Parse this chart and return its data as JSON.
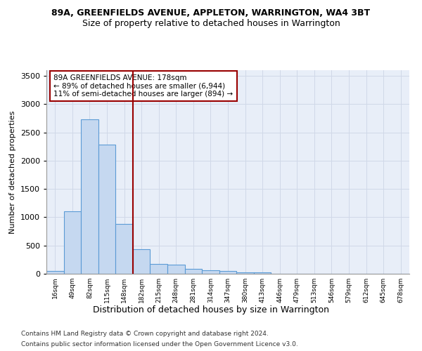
{
  "title": "89A, GREENFIELDS AVENUE, APPLETON, WARRINGTON, WA4 3BT",
  "subtitle": "Size of property relative to detached houses in Warrington",
  "xlabel": "Distribution of detached houses by size in Warrington",
  "ylabel": "Number of detached properties",
  "bar_color": "#c5d8f0",
  "bar_edge_color": "#5b9bd5",
  "grid_color": "#d0d8e8",
  "background_color": "#e8eef8",
  "vline_x": 4.5,
  "vline_color": "#990000",
  "annotation_line1": "89A GREENFIELDS AVENUE: 178sqm",
  "annotation_line2": "← 89% of detached houses are smaller (6,944)",
  "annotation_line3": "11% of semi-detached houses are larger (894) →",
  "annotation_box_color": "#990000",
  "categories": [
    "16sqm",
    "49sqm",
    "82sqm",
    "115sqm",
    "148sqm",
    "182sqm",
    "215sqm",
    "248sqm",
    "281sqm",
    "314sqm",
    "347sqm",
    "380sqm",
    "413sqm",
    "446sqm",
    "479sqm",
    "513sqm",
    "546sqm",
    "579sqm",
    "612sqm",
    "645sqm",
    "678sqm"
  ],
  "values": [
    55,
    1100,
    2730,
    2280,
    880,
    430,
    170,
    165,
    90,
    60,
    50,
    30,
    25,
    0,
    0,
    0,
    0,
    0,
    0,
    0,
    0
  ],
  "ylim": [
    0,
    3600
  ],
  "yticks": [
    0,
    500,
    1000,
    1500,
    2000,
    2500,
    3000,
    3500
  ],
  "footer1": "Contains HM Land Registry data © Crown copyright and database right 2024.",
  "footer2": "Contains public sector information licensed under the Open Government Licence v3.0."
}
